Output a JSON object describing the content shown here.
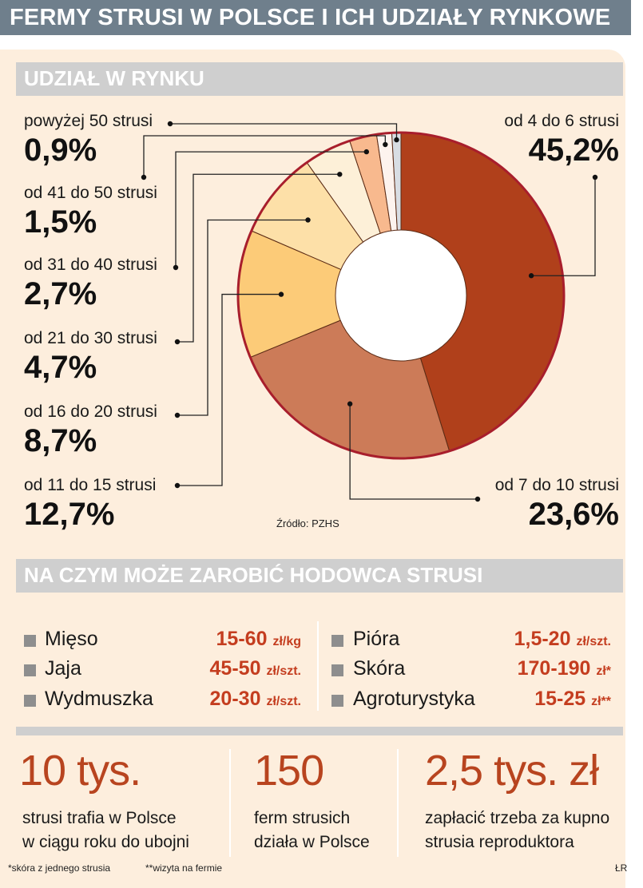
{
  "title": "FERMY STRUSI W POLSCE I ICH UDZIAŁY RYNKOWE",
  "market_section_title": "UDZIAŁ W RYNKU",
  "source": "Źródło: PZHS",
  "chart_data": {
    "type": "pie",
    "title": "UDZIAŁ W RYNKU",
    "categories": [
      "od 4 do 6 strusi",
      "od 7 do 10 strusi",
      "od 11 do 15 strusi",
      "od 16 do 20 strusi",
      "od 21 do 30 strusi",
      "od 31 do 40 strusi",
      "od 41 do 50 strusi",
      "powyżej 50 strusi"
    ],
    "values": [
      45.2,
      23.6,
      12.7,
      8.7,
      4.7,
      2.7,
      1.5,
      0.9
    ],
    "labels": [
      "45,2%",
      "23,6%",
      "12,7%",
      "8,7%",
      "4,7%",
      "2,7%",
      "1,5%",
      "0,9%"
    ],
    "colors": [
      "#b0401b",
      "#cc7b58",
      "#fccb78",
      "#fde0a8",
      "#fdf0d8",
      "#f8b98e",
      "#fdf3ee",
      "#d8dde3"
    ],
    "unit": "%"
  },
  "earnings": {
    "title": "NA CZYM MOŻE ZAROBIĆ HODOWCA STRUSI",
    "left": [
      {
        "name": "Mięso",
        "value": "15-60",
        "unit": "zł/kg"
      },
      {
        "name": "Jaja",
        "value": "45-50",
        "unit": "zł/szt."
      },
      {
        "name": "Wydmuszka",
        "value": "20-30",
        "unit": "zł/szt."
      }
    ],
    "right": [
      {
        "name": "Pióra",
        "value": "1,5-20",
        "unit": "zł/szt."
      },
      {
        "name": "Skóra",
        "value": "170-190",
        "unit": "zł*"
      },
      {
        "name": "Agroturystyka",
        "value": "15-25",
        "unit": "zł**"
      }
    ]
  },
  "facts": [
    {
      "big": "10 tys.",
      "line1": "strusi trafia w Polsce",
      "line2": "w ciągu roku do ubojni"
    },
    {
      "big": "150",
      "line1": "ferm strusich",
      "line2": "działa w Polsce"
    },
    {
      "big": "2,5 tys. zł",
      "line1": "zapłacić trzeba za kupno",
      "line2": "strusia reproduktora"
    }
  ],
  "footnotes": {
    "skin": "*skóra z jednego strusia",
    "visit": "**wizyta na fermie",
    "author": "ŁR"
  }
}
